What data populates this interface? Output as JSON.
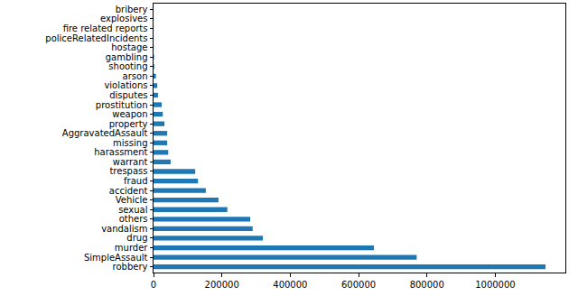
{
  "chart_data": {
    "type": "bar",
    "orientation": "horizontal",
    "categories": [
      "robbery",
      "SimpleAssault",
      "murder",
      "drug",
      "vandalism",
      "others",
      "sexual",
      "Vehicle",
      "accident",
      "fraud",
      "trespass",
      "warrant",
      "harassment",
      "missing",
      "AggravatedAssault",
      "property",
      "weapon",
      "prostitution",
      "disputes",
      "violations",
      "arson",
      "shooting",
      "gambling",
      "hostage",
      "policeRelatedIncidents",
      "fire related reports",
      "explosives",
      "bribery"
    ],
    "values": [
      1147000,
      770000,
      645000,
      320000,
      290000,
      283000,
      216000,
      190000,
      153000,
      130000,
      122000,
      50000,
      43000,
      40000,
      40000,
      32000,
      27000,
      24000,
      13000,
      11000,
      7000,
      2000,
      1500,
      500,
      300,
      200,
      150,
      100
    ],
    "color": "#1f77b4",
    "xlim": [
      0,
      1205000
    ],
    "xticks": [
      0,
      200000,
      400000,
      600000,
      800000,
      1000000
    ],
    "grid": false
  }
}
